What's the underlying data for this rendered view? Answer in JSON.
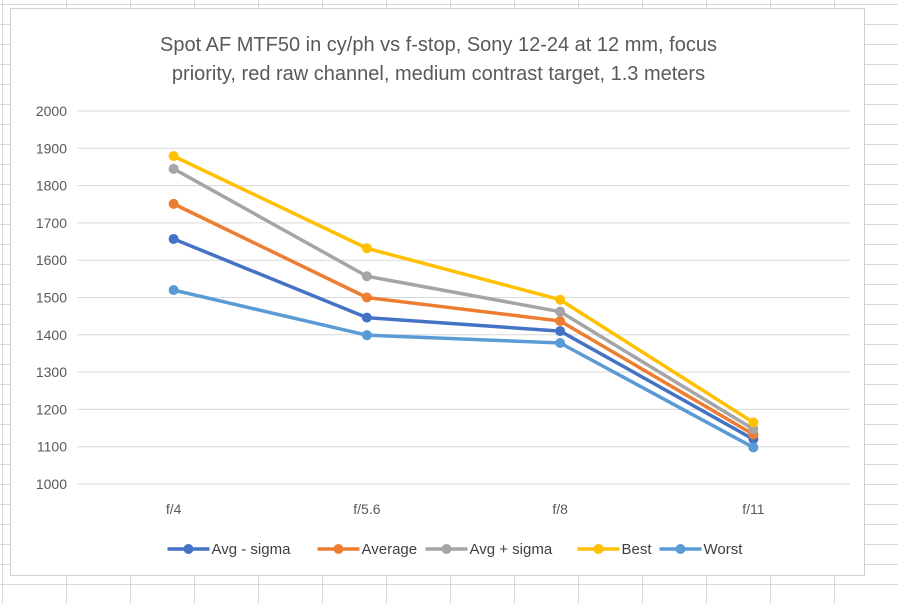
{
  "chart_data": {
    "type": "line",
    "title_lines": [
      "Spot AF MTF50 in cy/ph vs f-stop, Sony 12-24 at 12 mm, focus",
      "priority, red raw channel, medium contrast target, 1.3 meters"
    ],
    "categories": [
      "f/4",
      "f/5.6",
      "f/8",
      "f/11"
    ],
    "ylim": [
      1000,
      2000
    ],
    "yticks": [
      1000,
      1100,
      1200,
      1300,
      1400,
      1500,
      1600,
      1700,
      1800,
      1900,
      2000
    ],
    "grid": true,
    "legend_position": "bottom",
    "series": [
      {
        "name": "Avg - sigma",
        "color": "#4472c4",
        "values": [
          1657,
          1446,
          1410,
          1120
        ]
      },
      {
        "name": "Average",
        "color": "#ed7d31",
        "values": [
          1751,
          1500,
          1437,
          1133
        ]
      },
      {
        "name": "Avg + sigma",
        "color": "#a5a5a5",
        "values": [
          1845,
          1557,
          1462,
          1147
        ]
      },
      {
        "name": "Best",
        "color": "#ffc000",
        "values": [
          1879,
          1632,
          1494,
          1165
        ]
      },
      {
        "name": "Worst",
        "color": "#5b9bd5",
        "values": [
          1520,
          1399,
          1378,
          1098
        ]
      }
    ]
  }
}
